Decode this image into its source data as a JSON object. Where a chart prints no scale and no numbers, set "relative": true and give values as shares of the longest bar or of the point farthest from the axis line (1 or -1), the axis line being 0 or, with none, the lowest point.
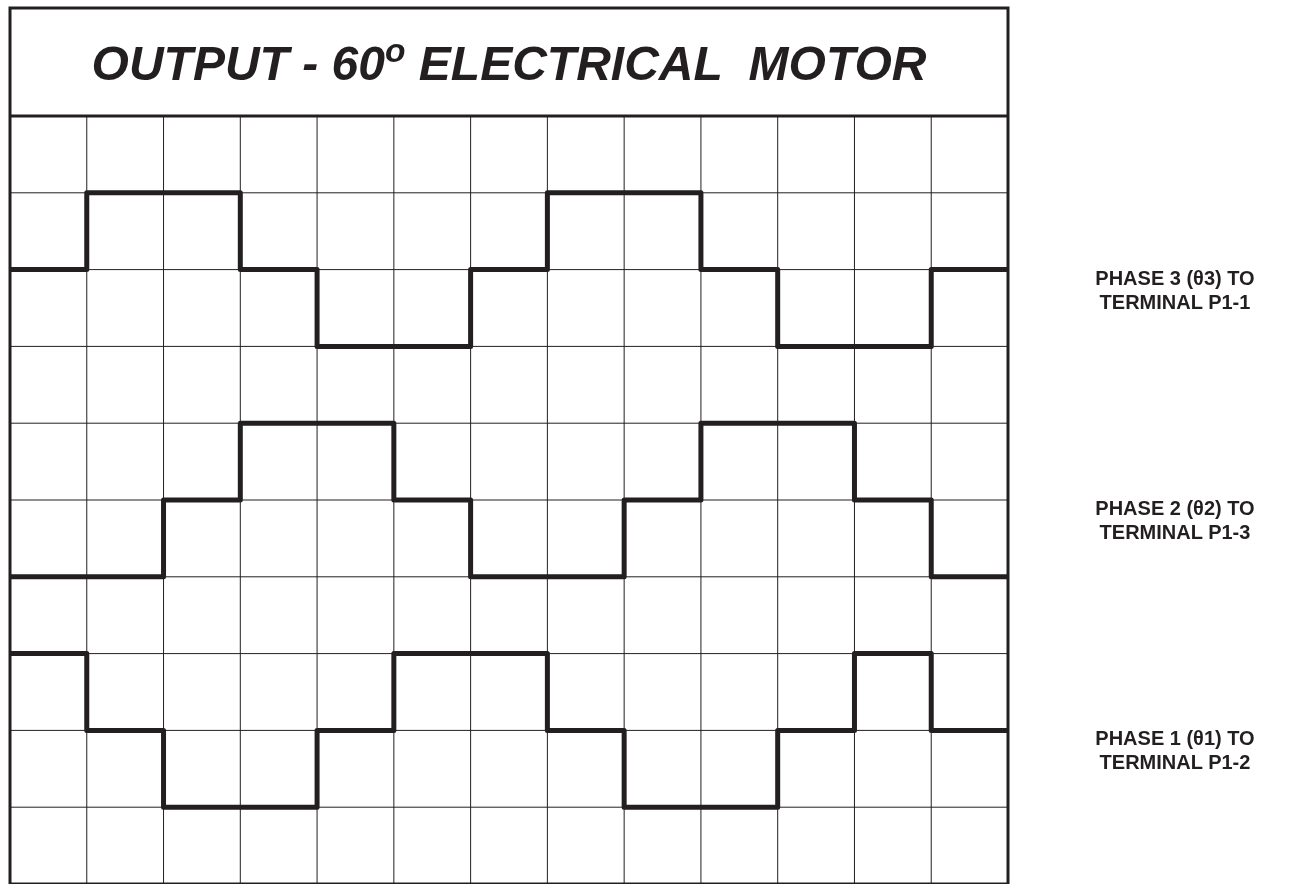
{
  "chart_data": {
    "type": "step",
    "title": "OUTPUT - 60$^{o}$ ELECTRICAL  MOTOR",
    "relative": true,
    "grid": true,
    "legend": false,
    "categories": [
      null,
      null,
      null,
      null,
      null,
      null,
      null,
      null,
      null,
      null,
      null,
      null,
      null,
      null
    ],
    "series": [
      {
        "name": "PHASE 3 (θ3) TO TERMINAL P1-1",
        "color": "#231f20",
        "values": [
          0.875,
          1,
          1,
          0.875,
          0.75,
          0.75,
          0.875,
          1,
          1,
          0.875,
          0.75,
          0.75,
          0.875,
          0.875
        ]
      },
      {
        "name": "PHASE 2 (θ2) TO TERMINAL P1-3",
        "color": "#231f20",
        "values": [
          0.375,
          0.375,
          0.5,
          0.625,
          0.625,
          0.5,
          0.375,
          0.375,
          0.5,
          0.625,
          0.625,
          0.5,
          0.375,
          0.375
        ]
      },
      {
        "name": "PHASE 1 (θ1) TO TERMINAL P1-2",
        "color": "#231f20",
        "values": [
          0.25,
          0.125,
          0,
          0,
          0.125,
          0.25,
          0.25,
          0.125,
          0,
          0,
          0.125,
          0.25,
          0.125,
          0.125
        ]
      }
    ]
  }
}
